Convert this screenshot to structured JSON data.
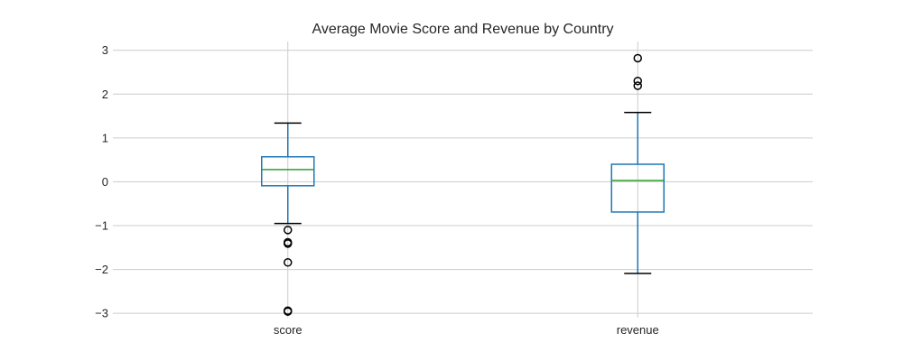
{
  "chart_data": {
    "type": "box",
    "title": "Average Movie Score and Revenue by Country",
    "xlabel": "",
    "ylabel": "",
    "categories": [
      "score",
      "revenue"
    ],
    "y_ticks": [
      -3,
      -2,
      -1,
      0,
      1,
      2,
      3
    ],
    "y_tick_labels": [
      "−3",
      "−2",
      "−1",
      "0",
      "1",
      "2",
      "3"
    ],
    "ylim": [
      -3.1,
      3.2
    ],
    "grid": true,
    "boxes": [
      {
        "name": "score",
        "whisker_low": -0.95,
        "q1": -0.09,
        "median": 0.28,
        "q3": 0.57,
        "whisker_high": 1.34,
        "outliers": [
          -1.1,
          -1.38,
          -1.41,
          -1.84,
          -2.94,
          -2.96
        ]
      },
      {
        "name": "revenue",
        "whisker_low": -2.09,
        "q1": -0.69,
        "median": 0.03,
        "q3": 0.4,
        "whisker_high": 1.58,
        "outliers": [
          2.19,
          2.3,
          2.82
        ]
      }
    ],
    "colors": {
      "box": "#1f77b4",
      "median": "#2ca02c",
      "outlier": "#000000",
      "grid": "#cccccc",
      "cap": "#000000"
    }
  }
}
